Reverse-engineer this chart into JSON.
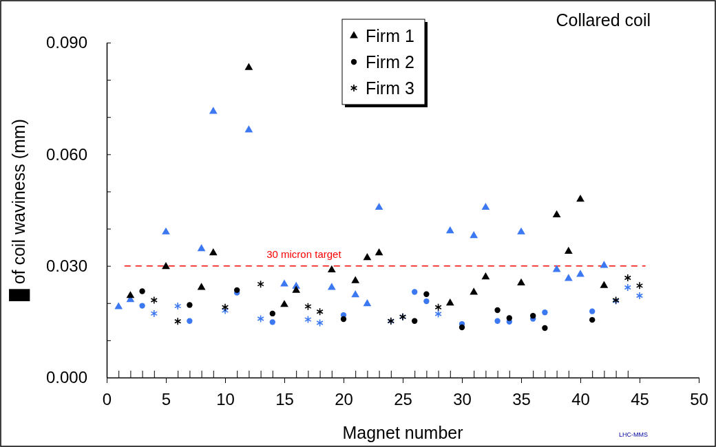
{
  "chart_data": {
    "type": "scatter",
    "title": "Collared coil",
    "xlabel": "Magnet number",
    "ylabel": "█ of coil waviness (mm)",
    "xlim": [
      0,
      50
    ],
    "ylim": [
      0,
      0.09
    ],
    "xticks": [
      0,
      {
        "value": 1,
        "label": null
      },
      {
        "value": 2,
        "label": null
      },
      {
        "value": 3,
        "label": null
      },
      {
        "value": 4,
        "label": null
      },
      5,
      {
        "value": 6,
        "label": null
      },
      {
        "value": 7,
        "label": null
      },
      {
        "value": 8,
        "label": null
      },
      {
        "value": 9,
        "label": null
      },
      10,
      {
        "value": 11,
        "label": null
      },
      {
        "value": 12,
        "label": null
      },
      {
        "value": 13,
        "label": null
      },
      {
        "value": 14,
        "label": null
      },
      15,
      {
        "value": 16,
        "label": null
      },
      {
        "value": 17,
        "label": null
      },
      {
        "value": 18,
        "label": null
      },
      {
        "value": 19,
        "label": null
      },
      20,
      {
        "value": 21,
        "label": null
      },
      {
        "value": 22,
        "label": null
      },
      {
        "value": 23,
        "label": null
      },
      {
        "value": 24,
        "label": null
      },
      25,
      {
        "value": 26,
        "label": null
      },
      {
        "value": 27,
        "label": null
      },
      {
        "value": 28,
        "label": null
      },
      {
        "value": 29,
        "label": null
      },
      30,
      {
        "value": 31,
        "label": null
      },
      {
        "value": 32,
        "label": null
      },
      {
        "value": 33,
        "label": null
      },
      {
        "value": 34,
        "label": null
      },
      35,
      {
        "value": 36,
        "label": null
      },
      {
        "value": 37,
        "label": null
      },
      {
        "value": 38,
        "label": null
      },
      {
        "value": 39,
        "label": null
      },
      40,
      {
        "value": 41,
        "label": null
      },
      {
        "value": 42,
        "label": null
      },
      {
        "value": 43,
        "label": null
      },
      {
        "value": 44,
        "label": null
      },
      45,
      50
    ],
    "yticks": [
      {
        "value": 0,
        "label": "0.000"
      },
      {
        "value": 0.01,
        "label": null
      },
      {
        "value": 0.02,
        "label": null
      },
      {
        "value": 0.03,
        "label": "0.030"
      },
      {
        "value": 0.04,
        "label": null
      },
      {
        "value": 0.05,
        "label": null
      },
      {
        "value": 0.06,
        "label": "0.060"
      },
      {
        "value": 0.07,
        "label": null
      },
      {
        "value": 0.08,
        "label": null
      },
      {
        "value": 0.09,
        "label": "0.090"
      }
    ],
    "grid": false,
    "legend": "top",
    "ref_lines": [
      {
        "axis": "y",
        "value": 0.03,
        "label": "30 micron target",
        "color": "#ff0000",
        "line_style": "dashed"
      }
    ],
    "annotations": [
      "LHC-MMS"
    ],
    "series": [
      {
        "name": null,
        "color": "#3b78f2",
        "marker": "triangle",
        "x": [
          1,
          2,
          5,
          8,
          9,
          12,
          15,
          16,
          19,
          21,
          22,
          23,
          29,
          31,
          32,
          35,
          38,
          39,
          40,
          42
        ],
        "values": [
          0.019,
          0.0209,
          0.0391,
          0.0346,
          0.0715,
          0.0665,
          0.0251,
          0.0245,
          0.0242,
          0.0222,
          0.0198,
          0.0457,
          0.0394,
          0.0381,
          0.0457,
          0.0391,
          0.029,
          0.0266,
          0.0277,
          0.0301
        ]
      },
      {
        "name": null,
        "color": "#3b78f2",
        "marker": "circle",
        "x": [
          3,
          7,
          11,
          14,
          20,
          26,
          27,
          30,
          33,
          34,
          36,
          37,
          41
        ],
        "values": [
          0.0193,
          0.0152,
          0.0228,
          0.0149,
          0.0168,
          0.023,
          0.0205,
          0.0144,
          0.0152,
          0.015,
          0.0158,
          0.0175,
          0.0178
        ]
      },
      {
        "name": null,
        "color": "#3b78f2",
        "marker": "cross",
        "x": [
          4,
          6,
          10,
          13,
          17,
          18,
          24,
          25,
          28,
          43,
          44,
          45
        ],
        "values": [
          0.0172,
          0.0192,
          0.018,
          0.0158,
          0.0156,
          0.0147,
          0.0151,
          0.0163,
          0.0171,
          0.0206,
          0.0242,
          0.022
        ]
      },
      {
        "name": "Firm 1",
        "color": "#000000",
        "marker": "triangle",
        "x": [
          2,
          5,
          8,
          9,
          12,
          15,
          16,
          19,
          21,
          22,
          23,
          29,
          31,
          32,
          35,
          38,
          39,
          40,
          42
        ],
        "values": [
          0.022,
          0.0298,
          0.0242,
          0.0335,
          0.0833,
          0.0196,
          0.0234,
          0.0289,
          0.026,
          0.0322,
          0.0335,
          0.02,
          0.0229,
          0.027,
          0.0254,
          0.0437,
          0.0339,
          0.0479,
          0.0247
        ]
      },
      {
        "name": "Firm 2",
        "color": "#000000",
        "marker": "circle",
        "x": [
          3,
          7,
          11,
          14,
          20,
          26,
          27,
          30,
          33,
          34,
          36,
          37,
          41
        ],
        "values": [
          0.0232,
          0.0195,
          0.0235,
          0.0172,
          0.0157,
          0.0152,
          0.0224,
          0.0135,
          0.0181,
          0.016,
          0.0166,
          0.0133,
          0.0155
        ]
      },
      {
        "name": "Firm 3",
        "color": "#000000",
        "marker": "cross",
        "x": [
          4,
          6,
          10,
          13,
          17,
          18,
          24,
          25,
          28,
          43,
          44,
          45
        ],
        "values": [
          0.0208,
          0.0151,
          0.0189,
          0.0251,
          0.0191,
          0.0177,
          0.0152,
          0.0163,
          0.0189,
          0.0208,
          0.0268,
          0.0247
        ]
      }
    ]
  }
}
